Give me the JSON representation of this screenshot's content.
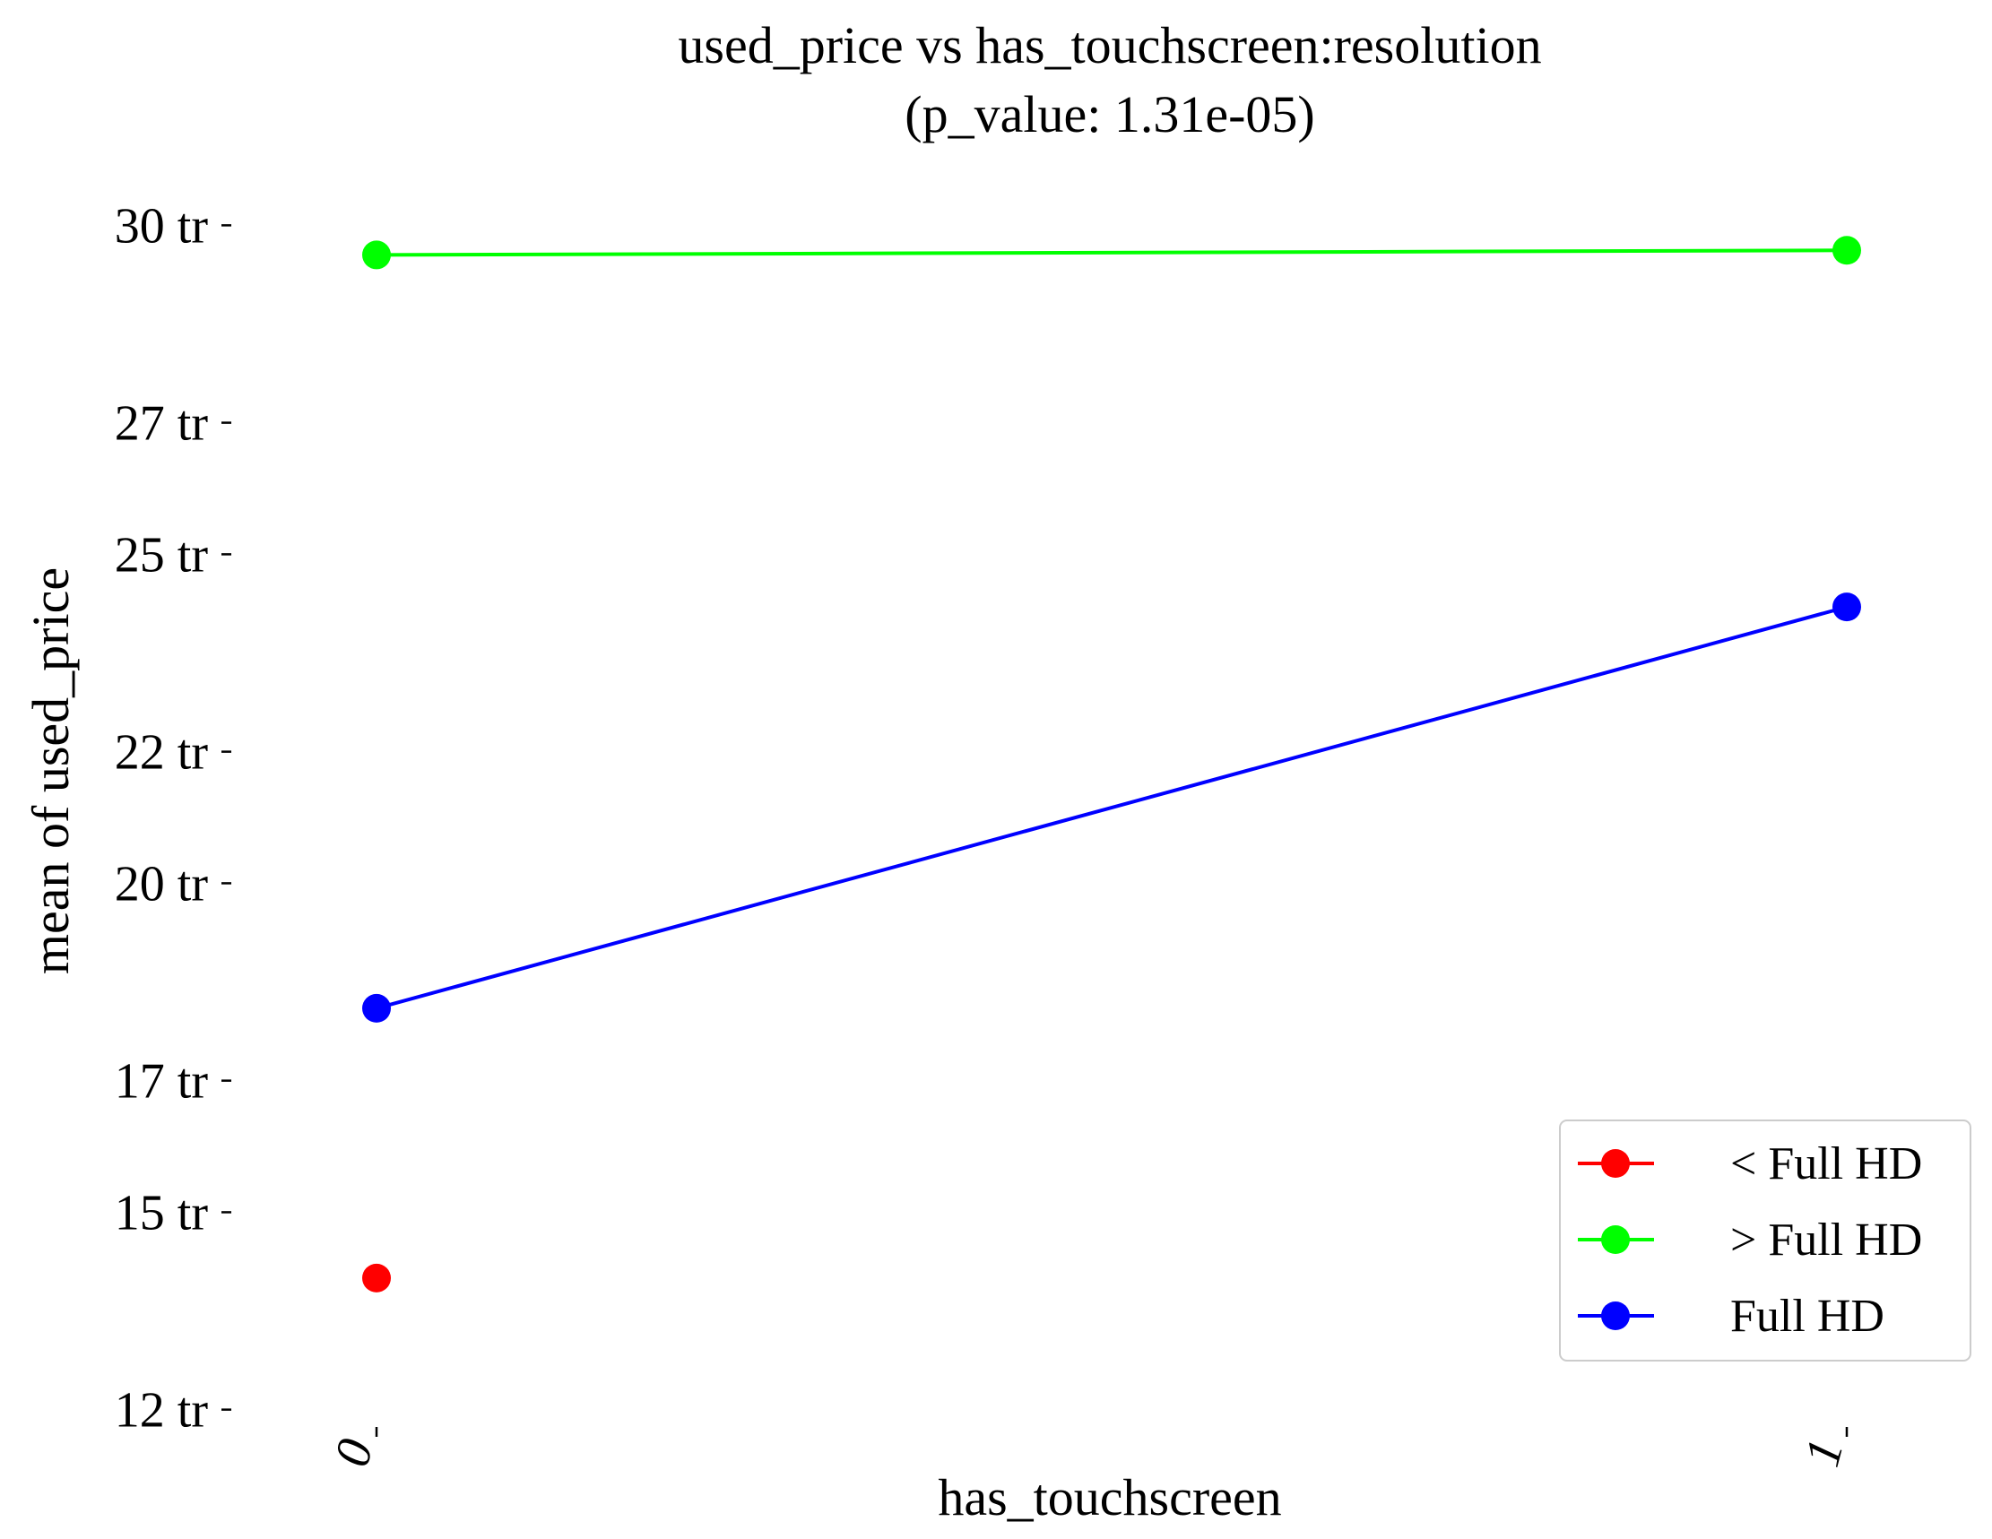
{
  "chart_data": {
    "type": "line",
    "title": "used_price vs has_touchscreen:resolution",
    "subtitle": "(p_value: 1.31e-05)",
    "xlabel": "has_touchscreen",
    "ylabel": "mean of used_price",
    "x_categories": [
      "0",
      "1"
    ],
    "y_ticks": [
      12,
      15,
      17,
      20,
      22,
      25,
      27,
      30
    ],
    "y_tick_labels": [
      "12 tr",
      "15 tr",
      "17 tr",
      "20 tr",
      "22 tr",
      "25 tr",
      "27 tr",
      "30 tr"
    ],
    "y_unit": "tr",
    "ylim": [
      11.9,
      30.7
    ],
    "grid": false,
    "legend_position": "bottom-right",
    "series": [
      {
        "name": "< Full HD",
        "color": "#ff0000",
        "values": [
          14.0,
          null
        ]
      },
      {
        "name": "> Full HD",
        "color": "#00ff00",
        "values": [
          29.55,
          29.62
        ]
      },
      {
        "name": "Full HD",
        "color": "#0000ff",
        "values": [
          18.1,
          24.2
        ]
      }
    ]
  }
}
